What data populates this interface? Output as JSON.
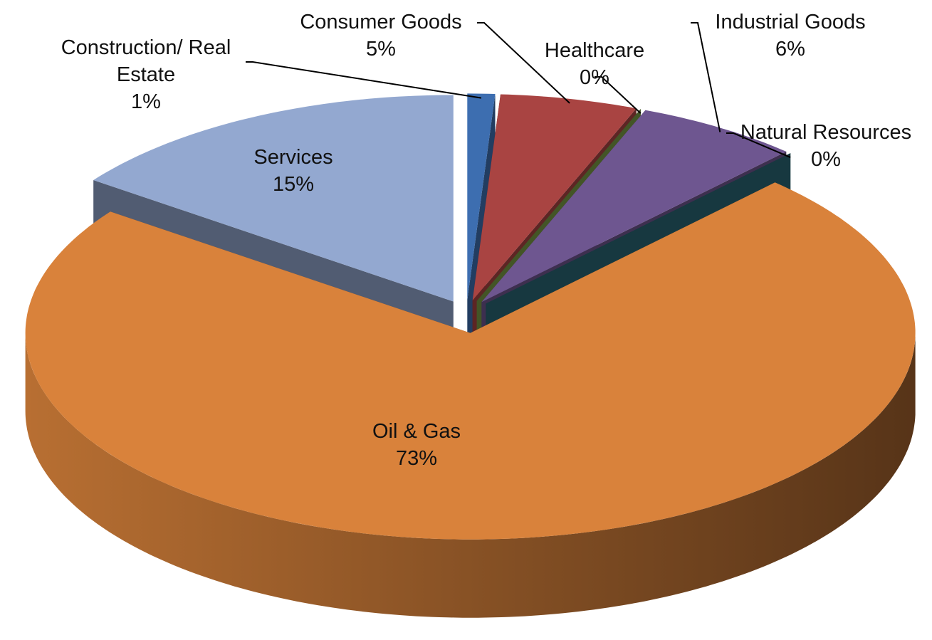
{
  "chart_data": {
    "type": "pie",
    "categories": [
      "Construction/ Real Estate",
      "Consumer Goods",
      "Healthcare",
      "Industrial Goods",
      "Natural Resources",
      "Oil & Gas",
      "Services"
    ],
    "values": [
      1,
      5,
      0,
      6,
      0,
      73,
      15
    ],
    "value_labels": [
      "1%",
      "5%",
      "0%",
      "6%",
      "0%",
      "73%",
      "15%"
    ],
    "colors": [
      "#3d6eb0",
      "#a94442",
      "#7a9a45",
      "#6e5690",
      "#2a6575",
      "#d9823b",
      "#93a8d0"
    ],
    "three_d": true
  }
}
